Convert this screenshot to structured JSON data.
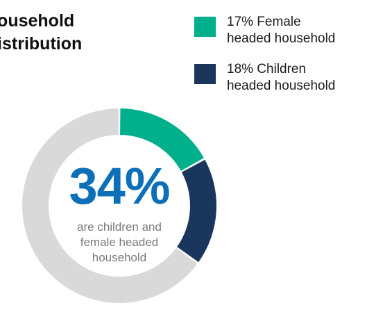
{
  "title": {
    "line1": "Household",
    "line2": "Distribution"
  },
  "legend": [
    {
      "line1": "17% Female",
      "line2": "headed household",
      "color": "#00b08c"
    },
    {
      "line1": "18% Children",
      "line2": "headed household",
      "color": "#1b365d"
    }
  ],
  "center": {
    "value": "34%",
    "caption_line1": "are children and",
    "caption_line2": "female headed",
    "caption_line3": "household"
  },
  "chart_data": {
    "type": "pie",
    "style": "donut",
    "title": "Household Distribution",
    "slices": [
      {
        "label": "Female headed household",
        "value": 17,
        "color": "#00b08c"
      },
      {
        "label": "Children headed household",
        "value": 18,
        "color": "#1b365d"
      },
      {
        "label": "",
        "value": 65,
        "color": "#d9d9d9"
      }
    ],
    "center_label": "34%",
    "legend_position": "top-right",
    "start_angle": "top",
    "direction": "clockwise"
  }
}
